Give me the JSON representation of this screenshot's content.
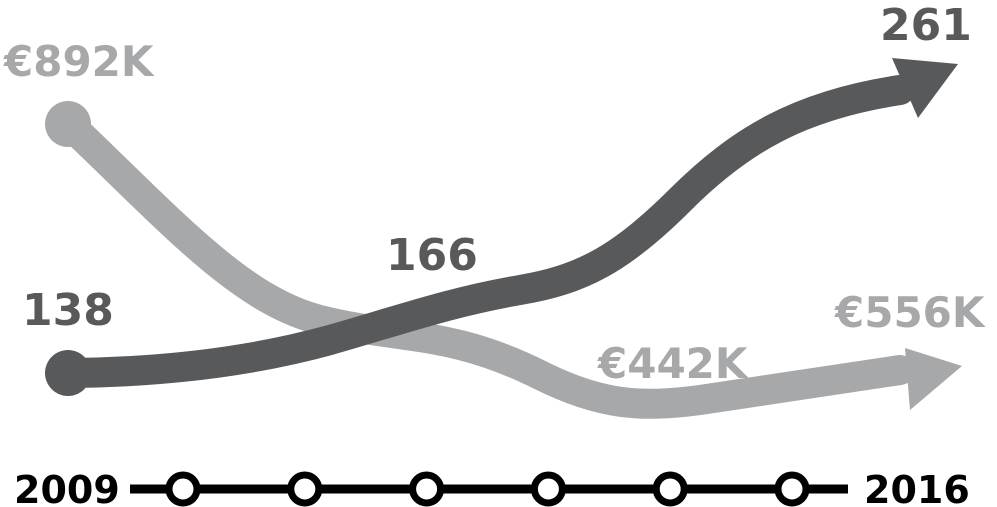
{
  "chart_data": {
    "type": "line",
    "x_start_label": "2009",
    "x_end_label": "2016",
    "timeline_points": 6,
    "grid": false,
    "legend": "none",
    "series": [
      {
        "color": "#a7a8aa",
        "values": [
          892,
          442,
          556
        ],
        "labels": [
          "€892K",
          "€442K",
          "€556K"
        ]
      },
      {
        "color": "#58595b",
        "values": [
          138,
          166,
          261
        ],
        "labels": [
          "138",
          "166",
          "261"
        ]
      }
    ],
    "colors": {
      "timeline": "#000000",
      "background": "#ffffff"
    }
  }
}
